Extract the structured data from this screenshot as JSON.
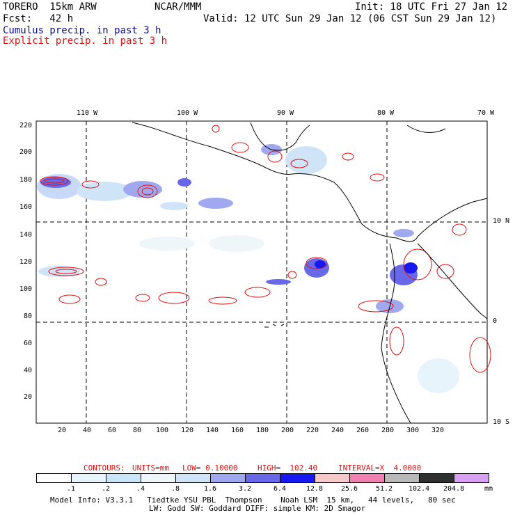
{
  "header": {
    "model": "TORERO  15km ARW",
    "center": "NCAR/MMM",
    "init": "Init: 18 UTC Fri 27 Jan 12",
    "fcst": "Fcst:   42 h",
    "valid": "Valid: 12 UTC Sun 29 Jan 12 (06 CST Sun 29 Jan 12)",
    "legend_cumulus": "Cumulus precip. in past 3 h",
    "legend_explicit": "Explicit precip. in past 3 h"
  },
  "colors": {
    "cumulus_text": "#0a0a8c",
    "explicit_text": "#e01010",
    "contour": "#e01010",
    "coast": "#000000"
  },
  "axes": {
    "x_ticks": [
      "20",
      "40",
      "60",
      "80",
      "100",
      "120",
      "140",
      "160",
      "180",
      "200",
      "220",
      "240",
      "260",
      "280",
      "300",
      "320"
    ],
    "y_ticks": [
      "20",
      "40",
      "60",
      "80",
      "100",
      "120",
      "140",
      "160",
      "180",
      "200",
      "220"
    ],
    "lon_labels": [
      "110 W",
      "100 W",
      "90 W",
      "80 W",
      "70 W"
    ],
    "lat_labels": [
      "10 N",
      "0",
      "10 S"
    ]
  },
  "contour_info": {
    "label": "CONTOURS:",
    "units": "UNITS=mm",
    "low": "LOW= 0.10000",
    "high": "HIGH=  102.40",
    "interval": "INTERVAL=X  4.0000"
  },
  "colorbar": {
    "colors": [
      "#ffffff",
      "#e8f4fb",
      "#c8e6f8",
      "#eef6fa",
      "#d0e4f8",
      "#a0a8f0",
      "#6868e8",
      "#1818f0",
      "#f8c8c8",
      "#f080b0",
      "#b8b8b8",
      "#303030",
      "#d8a0f0"
    ],
    "labels": [
      ".1",
      ".2",
      ".4",
      ".8",
      "1.6",
      "3.2",
      "6.4",
      "12.8",
      "25.6",
      "51.2",
      "102.4",
      "204.8"
    ],
    "unit": "mm"
  },
  "footer": {
    "line1": "Model Info: V3.3.1   Tiedtke YSU PBL  Thompson    Noah LSM  15 km,   44 levels,   80 sec",
    "line2": "LW: Godd SW: Goddard DIFF: simple KM: 2D Smagor"
  }
}
